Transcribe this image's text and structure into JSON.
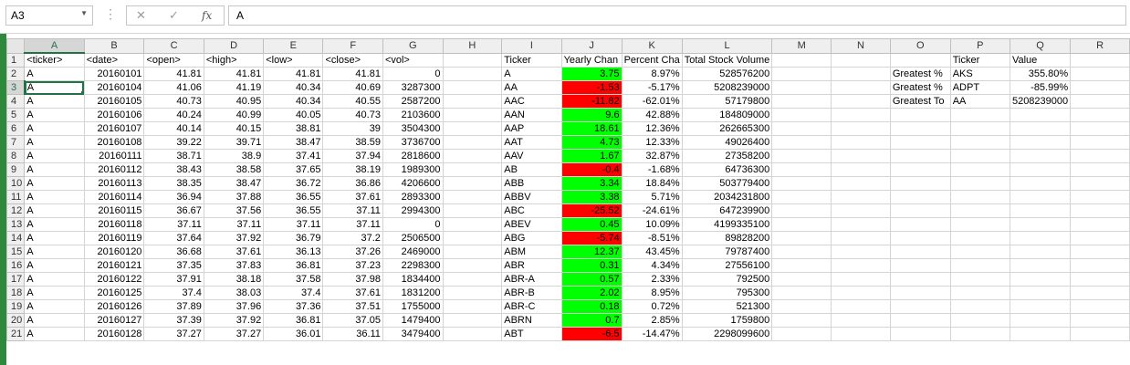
{
  "formula_bar": {
    "name_box": "A3",
    "cancel_icon": "✕",
    "enter_icon": "✓",
    "fx_label": "fx",
    "formula": "A"
  },
  "colors": {
    "positive": "#00ff00",
    "negative": "#ff0000",
    "accent": "#217346"
  },
  "columns": [
    "A",
    "B",
    "C",
    "D",
    "E",
    "F",
    "G",
    "H",
    "I",
    "J",
    "K",
    "L",
    "M",
    "N",
    "O",
    "P",
    "Q",
    "R"
  ],
  "rows": [
    [
      "<ticker>",
      "<date>",
      "<open>",
      "<high>",
      "<low>",
      "<close>",
      "<vol>",
      "",
      "Ticker",
      "Yearly Chan",
      "Percent Cha",
      "Total Stock Volume",
      "",
      "",
      "",
      "Ticker",
      "Value",
      ""
    ],
    [
      "A",
      "20160101",
      "41.81",
      "41.81",
      "41.81",
      "41.81",
      "0",
      "",
      "A",
      "3.75",
      "8.97%",
      "528576200",
      "",
      "",
      "Greatest %",
      "AKS",
      "355.80%",
      ""
    ],
    [
      "A",
      "20160104",
      "41.06",
      "41.19",
      "40.34",
      "40.69",
      "3287300",
      "",
      "AA",
      "-1.53",
      "-5.17%",
      "5208239000",
      "",
      "",
      "Greatest %",
      "ADPT",
      "-85.99%",
      ""
    ],
    [
      "A",
      "20160105",
      "40.73",
      "40.95",
      "40.34",
      "40.55",
      "2587200",
      "",
      "AAC",
      "-11.82",
      "-62.01%",
      "57179800",
      "",
      "",
      "Greatest To",
      "AA",
      "5208239000",
      ""
    ],
    [
      "A",
      "20160106",
      "40.24",
      "40.99",
      "40.05",
      "40.73",
      "2103600",
      "",
      "AAN",
      "9.6",
      "42.88%",
      "184809000",
      "",
      "",
      "",
      "",
      "",
      ""
    ],
    [
      "A",
      "20160107",
      "40.14",
      "40.15",
      "38.81",
      "39",
      "3504300",
      "",
      "AAP",
      "18.61",
      "12.36%",
      "262665300",
      "",
      "",
      "",
      "",
      "",
      ""
    ],
    [
      "A",
      "20160108",
      "39.22",
      "39.71",
      "38.47",
      "38.59",
      "3736700",
      "",
      "AAT",
      "4.73",
      "12.33%",
      "49026400",
      "",
      "",
      "",
      "",
      "",
      ""
    ],
    [
      "A",
      "20160111",
      "38.71",
      "38.9",
      "37.41",
      "37.94",
      "2818600",
      "",
      "AAV",
      "1.67",
      "32.87%",
      "27358200",
      "",
      "",
      "",
      "",
      "",
      ""
    ],
    [
      "A",
      "20160112",
      "38.43",
      "38.58",
      "37.65",
      "38.19",
      "1989300",
      "",
      "AB",
      "-0.4",
      "-1.68%",
      "64736300",
      "",
      "",
      "",
      "",
      "",
      ""
    ],
    [
      "A",
      "20160113",
      "38.35",
      "38.47",
      "36.72",
      "36.86",
      "4206600",
      "",
      "ABB",
      "3.34",
      "18.84%",
      "503779400",
      "",
      "",
      "",
      "",
      "",
      ""
    ],
    [
      "A",
      "20160114",
      "36.94",
      "37.88",
      "36.55",
      "37.61",
      "2893300",
      "",
      "ABBV",
      "3.38",
      "5.71%",
      "2034231800",
      "",
      "",
      "",
      "",
      "",
      ""
    ],
    [
      "A",
      "20160115",
      "36.67",
      "37.56",
      "36.55",
      "37.11",
      "2994300",
      "",
      "ABC",
      "-25.52",
      "-24.61%",
      "647239900",
      "",
      "",
      "",
      "",
      "",
      ""
    ],
    [
      "A",
      "20160118",
      "37.11",
      "37.11",
      "37.11",
      "37.11",
      "0",
      "",
      "ABEV",
      "0.45",
      "10.09%",
      "4199335100",
      "",
      "",
      "",
      "",
      "",
      ""
    ],
    [
      "A",
      "20160119",
      "37.64",
      "37.92",
      "36.79",
      "37.2",
      "2506500",
      "",
      "ABG",
      "-5.74",
      "-8.51%",
      "89828200",
      "",
      "",
      "",
      "",
      "",
      ""
    ],
    [
      "A",
      "20160120",
      "36.68",
      "37.61",
      "36.13",
      "37.26",
      "2469000",
      "",
      "ABM",
      "12.37",
      "43.45%",
      "79787400",
      "",
      "",
      "",
      "",
      "",
      ""
    ],
    [
      "A",
      "20160121",
      "37.35",
      "37.83",
      "36.81",
      "37.23",
      "2298300",
      "",
      "ABR",
      "0.31",
      "4.34%",
      "27556100",
      "",
      "",
      "",
      "",
      "",
      ""
    ],
    [
      "A",
      "20160122",
      "37.91",
      "38.18",
      "37.58",
      "37.98",
      "1834400",
      "",
      "ABR-A",
      "0.57",
      "2.33%",
      "792500",
      "",
      "",
      "",
      "",
      "",
      ""
    ],
    [
      "A",
      "20160125",
      "37.4",
      "38.03",
      "37.4",
      "37.61",
      "1831200",
      "",
      "ABR-B",
      "2.02",
      "8.95%",
      "795300",
      "",
      "",
      "",
      "",
      "",
      ""
    ],
    [
      "A",
      "20160126",
      "37.89",
      "37.96",
      "37.36",
      "37.51",
      "1755000",
      "",
      "ABR-C",
      "0.18",
      "0.72%",
      "521300",
      "",
      "",
      "",
      "",
      "",
      ""
    ],
    [
      "A",
      "20160127",
      "37.39",
      "37.92",
      "36.81",
      "37.05",
      "1479400",
      "",
      "ABRN",
      "0.7",
      "2.85%",
      "1759800",
      "",
      "",
      "",
      "",
      "",
      ""
    ],
    [
      "A",
      "20160128",
      "37.27",
      "37.27",
      "36.01",
      "36.11",
      "3479400",
      "",
      "ABT",
      "-6.5",
      "-14.47%",
      "2298099600",
      "",
      "",
      "",
      "",
      "",
      ""
    ]
  ]
}
